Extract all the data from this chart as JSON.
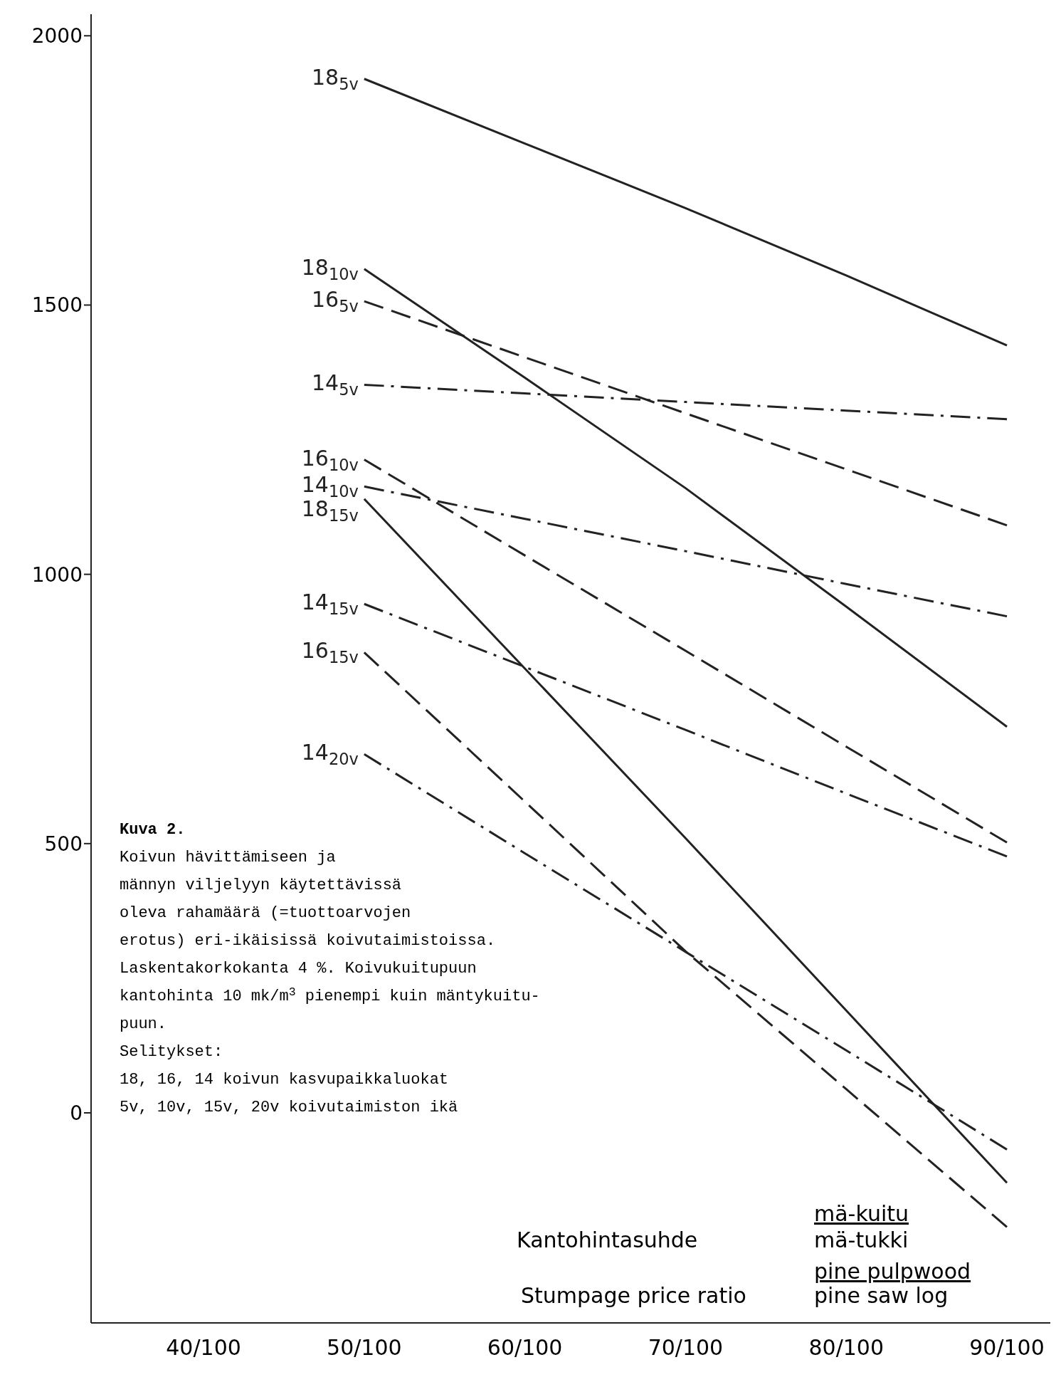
{
  "chart_data": {
    "type": "line",
    "xlabel": "Kantohintasuhde",
    "categories": [
      "40/100",
      "50/100",
      "60/100",
      "70/100",
      "80/100",
      "90/100"
    ],
    "ylim": [
      -390,
      2040
    ],
    "yticks": [
      0,
      500,
      1000,
      1500,
      2000
    ],
    "grid": false,
    "marker": "none",
    "series": [
      {
        "name": "18$_{5v}$",
        "color": "#222222",
        "line_style": "solid",
        "values": [
          null,
          1920,
          1800,
          1680,
          1555,
          1425
        ]
      },
      {
        "name": "18$_{10v}$",
        "color": "#222222",
        "line_style": "solid",
        "values": [
          null,
          1567,
          1365,
          1160,
          940,
          717
        ]
      },
      {
        "name": "16$_{5v}$",
        "color": "#222222",
        "line_style": "dashed",
        "values": [
          null,
          1507,
          1403,
          1299,
          1195,
          1091
        ]
      },
      {
        "name": "14$_{5v}$",
        "color": "#222222",
        "line_style": "dashdot",
        "values": [
          null,
          1352,
          1336,
          1320,
          1304,
          1288
        ]
      },
      {
        "name": "16$_{10v}$",
        "color": "#222222",
        "line_style": "dashed",
        "values": [
          null,
          1213,
          1035,
          858,
          680,
          502
        ]
      },
      {
        "name": "14$_{10v}$",
        "color": "#222222",
        "line_style": "dashdot",
        "values": [
          null,
          1163,
          1103,
          1043,
          982,
          922
        ]
      },
      {
        "name": "18$_{15v}$",
        "color": "#222222",
        "line_style": "solid",
        "values": [
          null,
          1140,
          825,
          510,
          190,
          -130
        ]
      },
      {
        "name": "14$_{15v}$",
        "color": "#222222",
        "line_style": "dashdot",
        "values": [
          null,
          945,
          828,
          711,
          593,
          476
        ]
      },
      {
        "name": "16$_{15v}$",
        "color": "#222222",
        "line_style": "dashed",
        "values": [
          null,
          855,
          578,
          300,
          44,
          -212
        ]
      },
      {
        "name": "14$_{20v}$",
        "color": "#222222",
        "line_style": "dashdot",
        "values": [
          null,
          666,
          482,
          299,
          116,
          -68
        ]
      }
    ],
    "annotations": [
      "Kuva 2.",
      "Koivun hävittämiseen ja",
      "männyn viljelyyn käytettävissä",
      "oleva rahamäärä (=tuottoarvojen",
      "erotus) eri-ikäisissä koivutaimistoissa.",
      "Laskentakorkokanta 4 %.  Koivukuitupuun",
      "kantohinta 10 mk/m$^{3}$ pienempi kuin mäntykuitu-",
      "puun.",
      "Selitykset:",
      "18, 16, 14 koivun kasvupaikkaluokat",
      "5v, 10v, 15v, 20v koivutaimiston ikä",
      "Stumpage price ratio",
      "mä-kuitu",
      "mä-tukki",
      "pine pulpwood",
      "pine saw log"
    ]
  }
}
